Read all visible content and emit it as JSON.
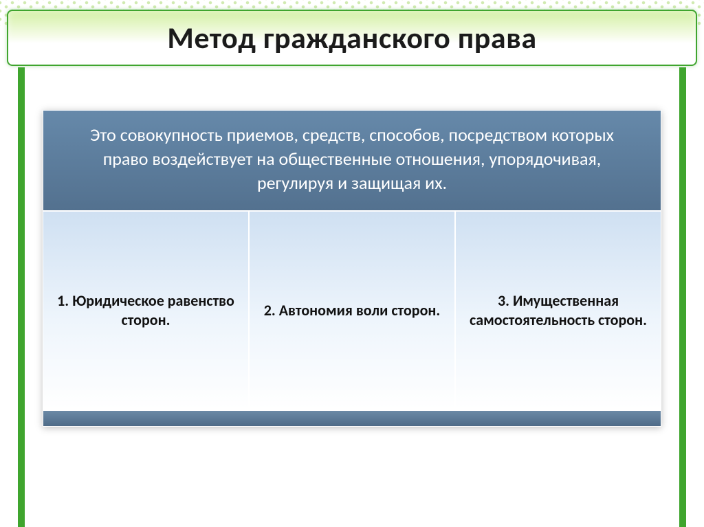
{
  "title": "Метод гражданского права",
  "definition": "Это совокупность приемов, средств, способов, посредством которых право воздействует на общественные отношения, упорядочивая, регулируя и защищая их.",
  "principles": [
    "1. Юридическое равенство сторон.",
    "2. Автономия воли сторон.",
    "3. Имущественная самостоятельность сторон."
  ],
  "colors": {
    "accent_green": "#3fa52e",
    "header_blue": "#5a7998",
    "cell_gradient_top": "#cfe0f2",
    "cell_gradient_bottom": "#ffffff",
    "text_dark": "#111111",
    "text_light": "#ffffff"
  },
  "layout": {
    "slide_width": 1024,
    "slide_height": 767,
    "columns": 3
  },
  "typography": {
    "title_fontsize": 44,
    "definition_fontsize": 26,
    "cell_fontsize": 22,
    "font_family": "Calibri"
  }
}
